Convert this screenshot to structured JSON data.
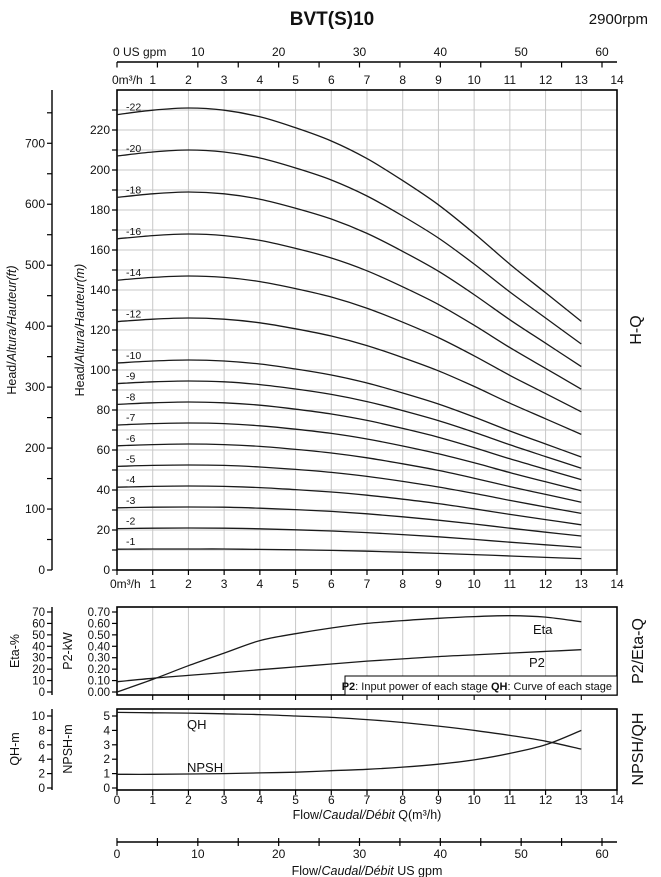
{
  "title": "BVT(S)10",
  "rpm_label": "2900rpm",
  "panel_right_labels": {
    "hq": "H-Q",
    "eta": "P2/Eta-Q",
    "npsh": "NPSH/QH"
  },
  "colors": {
    "curve": "#1a1a1a",
    "grid": "#c8c8c8",
    "axis": "#000000",
    "text": "#111111",
    "background": "#ffffff"
  },
  "note": {
    "p2_key": "P2",
    "p2_text": ": Input power of each stage ",
    "qh_key": "QH",
    "qh_text": ": Curve of each stage"
  },
  "axes": {
    "top_gpm": {
      "zero_label": "0 US gpm",
      "major_ticks": [
        10,
        20,
        30,
        40,
        50,
        60
      ],
      "minor_step": 5,
      "max": 60
    },
    "m3h": {
      "zero_label": "0m³/h",
      "ticks": [
        1,
        2,
        3,
        4,
        5,
        6,
        7,
        8,
        9,
        10,
        11,
        12,
        13,
        14
      ]
    },
    "head_m": {
      "title_parts": [
        {
          "text": "Head/",
          "italic": false
        },
        {
          "text": "Altura/Hauteur",
          "italic": true
        },
        {
          "text": "(m)",
          "italic": true
        }
      ],
      "labels": [
        0,
        20,
        40,
        60,
        80,
        100,
        120,
        140,
        160,
        180,
        200,
        220
      ],
      "tick_step": 10,
      "tick_max": 230
    },
    "head_ft": {
      "title_parts": [
        {
          "text": "Head/",
          "italic": false
        },
        {
          "text": "Altura/Hauteur",
          "italic": true
        },
        {
          "text": "(ft)",
          "italic": true
        }
      ],
      "labels": [
        0,
        100,
        200,
        300,
        400,
        500,
        600,
        700
      ],
      "tick_step": 50,
      "tick_max": 750
    },
    "eta": {
      "title": "Eta-%",
      "labels": [
        0,
        10,
        20,
        30,
        40,
        50,
        60,
        70
      ]
    },
    "p2": {
      "title": "P2-kW",
      "labels": [
        "0.00",
        "0.10",
        "0.20",
        "0.30",
        "0.40",
        "0.50",
        "0.60",
        "0.70"
      ]
    },
    "qh": {
      "title": "QH-m",
      "labels": [
        0,
        2,
        4,
        6,
        8,
        10
      ]
    },
    "npsh": {
      "title": "NPSH-m",
      "labels": [
        0,
        1,
        2,
        3,
        4,
        5
      ]
    },
    "flow_bottom": {
      "labels": [
        0,
        1,
        2,
        3,
        4,
        5,
        6,
        7,
        8,
        9,
        10,
        11,
        12,
        13,
        14
      ],
      "title_parts": [
        {
          "text": "Flow/",
          "italic": false
        },
        {
          "text": "Caudal/Débit",
          "italic": true
        },
        {
          "text": " Q(m³/h)",
          "italic": false
        }
      ]
    },
    "bottom_gpm": {
      "labels": [
        0,
        10,
        20,
        30,
        40,
        50,
        60
      ],
      "minor_step": 5,
      "title_parts": [
        {
          "text": "Flow/",
          "italic": false
        },
        {
          "text": "Caudal/Débit",
          "italic": true
        },
        {
          "text": "  US gpm",
          "italic": false
        }
      ]
    }
  },
  "chart_data": [
    {
      "type": "line",
      "title": "H-Q",
      "xlabel": "Flow Q (m³/h)",
      "ylabel": "Head (m)",
      "xlim": [
        0,
        14
      ],
      "ylim": [
        0,
        240
      ],
      "grid": true,
      "x": [
        0,
        1,
        2,
        3,
        4,
        5,
        6,
        7,
        8,
        9,
        10,
        11,
        12,
        13
      ],
      "series": [
        {
          "name": "-1",
          "stages": 1,
          "values": [
            10.4,
            10.5,
            10.5,
            10.5,
            10.3,
            10.1,
            9.8,
            9.4,
            8.9,
            8.3,
            7.7,
            7.0,
            6.3,
            5.7
          ]
        },
        {
          "name": "-2",
          "stages": 2,
          "values": [
            20.7,
            20.9,
            21.0,
            20.9,
            20.6,
            20.1,
            19.5,
            18.7,
            17.7,
            16.6,
            15.3,
            13.9,
            12.6,
            11.3
          ]
        },
        {
          "name": "-3",
          "stages": 3,
          "values": [
            31.1,
            31.4,
            31.5,
            31.4,
            30.9,
            30.2,
            29.3,
            28.1,
            26.6,
            24.9,
            23.0,
            20.9,
            18.9,
            17.0
          ]
        },
        {
          "name": "-4",
          "stages": 4,
          "values": [
            41.4,
            41.8,
            42.0,
            41.8,
            41.2,
            40.2,
            39.0,
            37.4,
            35.4,
            33.2,
            30.6,
            27.8,
            25.2,
            22.6
          ]
        },
        {
          "name": "-5",
          "stages": 5,
          "values": [
            51.8,
            52.3,
            52.5,
            52.3,
            51.5,
            50.3,
            48.8,
            46.8,
            44.3,
            41.5,
            38.3,
            34.8,
            31.5,
            28.3
          ]
        },
        {
          "name": "-6",
          "stages": 6,
          "values": [
            62.1,
            62.7,
            63.0,
            62.7,
            61.8,
            60.3,
            58.5,
            56.1,
            53.1,
            49.8,
            45.9,
            41.7,
            37.8,
            33.9
          ]
        },
        {
          "name": "-7",
          "stages": 7,
          "values": [
            72.5,
            73.2,
            73.5,
            73.2,
            72.1,
            70.4,
            68.3,
            65.5,
            62.0,
            58.1,
            53.6,
            48.7,
            44.1,
            39.6
          ]
        },
        {
          "name": "-8",
          "stages": 8,
          "values": [
            82.8,
            83.6,
            84.0,
            83.6,
            82.4,
            80.4,
            78.0,
            74.8,
            70.8,
            66.4,
            61.2,
            55.6,
            50.4,
            45.2
          ]
        },
        {
          "name": "-9",
          "stages": 9,
          "values": [
            93.2,
            94.1,
            94.5,
            94.1,
            92.7,
            90.5,
            87.8,
            84.2,
            79.7,
            74.7,
            68.9,
            62.6,
            56.7,
            50.9
          ]
        },
        {
          "name": "-10",
          "stages": 10,
          "values": [
            103.5,
            104.5,
            105.0,
            104.5,
            103.0,
            100.5,
            97.5,
            93.5,
            88.5,
            83.0,
            76.5,
            69.5,
            63.0,
            56.5
          ]
        },
        {
          "name": "-12",
          "stages": 12,
          "values": [
            124.2,
            125.4,
            126.0,
            125.4,
            123.6,
            120.6,
            117.0,
            112.2,
            106.2,
            99.6,
            91.8,
            83.4,
            75.6,
            67.8
          ]
        },
        {
          "name": "-14",
          "stages": 14,
          "values": [
            144.9,
            146.3,
            147.0,
            146.3,
            144.2,
            140.7,
            136.5,
            130.9,
            123.9,
            116.2,
            107.1,
            97.3,
            88.2,
            79.1
          ]
        },
        {
          "name": "-16",
          "stages": 16,
          "values": [
            165.6,
            167.2,
            168.0,
            167.2,
            164.8,
            160.8,
            156.0,
            149.6,
            141.6,
            132.8,
            122.4,
            111.2,
            100.8,
            90.4
          ]
        },
        {
          "name": "-18",
          "stages": 18,
          "values": [
            186.3,
            188.1,
            189.0,
            188.1,
            185.4,
            180.9,
            175.5,
            168.3,
            159.3,
            149.4,
            137.7,
            125.1,
            113.4,
            101.7
          ]
        },
        {
          "name": "-20",
          "stages": 20,
          "values": [
            207.0,
            209.0,
            210.0,
            209.0,
            206.0,
            201.0,
            195.0,
            187.0,
            177.0,
            166.0,
            153.0,
            139.0,
            126.0,
            113.0
          ]
        },
        {
          "name": "-22",
          "stages": 22,
          "values": [
            227.7,
            229.9,
            231.0,
            229.9,
            226.6,
            221.1,
            214.5,
            205.7,
            194.7,
            182.6,
            168.3,
            152.9,
            138.6,
            124.3
          ]
        }
      ]
    },
    {
      "type": "line",
      "title": "P2/Eta-Q",
      "xlim": [
        0,
        14
      ],
      "grid": true,
      "x": [
        0,
        1,
        2,
        3,
        4,
        5,
        6,
        7,
        8,
        9,
        10,
        11,
        12,
        13
      ],
      "series": [
        {
          "name": "Eta",
          "unit": "%",
          "axis_range": [
            0,
            70
          ],
          "values": [
            0,
            11,
            23,
            34,
            45,
            51,
            56,
            60,
            62.5,
            64.5,
            66,
            66.8,
            65.5,
            61.5
          ]
        },
        {
          "name": "P2",
          "unit": "kW",
          "axis_range": [
            0,
            0.7
          ],
          "values": [
            0.09,
            0.12,
            0.145,
            0.17,
            0.195,
            0.22,
            0.245,
            0.27,
            0.29,
            0.31,
            0.325,
            0.34,
            0.355,
            0.37
          ]
        }
      ]
    },
    {
      "type": "line",
      "title": "NPSH/QH",
      "xlim": [
        0,
        14
      ],
      "grid": true,
      "x": [
        0,
        1,
        2,
        3,
        4,
        5,
        6,
        7,
        8,
        9,
        10,
        11,
        12,
        13
      ],
      "series": [
        {
          "name": "QH",
          "unit": "m",
          "axis_range": [
            0,
            10
          ],
          "values": [
            10.5,
            10.45,
            10.4,
            10.3,
            10.2,
            10.0,
            9.8,
            9.5,
            9.1,
            8.6,
            8.0,
            7.3,
            6.5,
            5.4
          ]
        },
        {
          "name": "NPSH",
          "unit": "m",
          "axis_range": [
            0,
            5
          ],
          "values": [
            0.95,
            0.95,
            0.97,
            1.0,
            1.05,
            1.1,
            1.2,
            1.3,
            1.45,
            1.65,
            1.95,
            2.4,
            3.0,
            4.0
          ]
        }
      ]
    }
  ]
}
